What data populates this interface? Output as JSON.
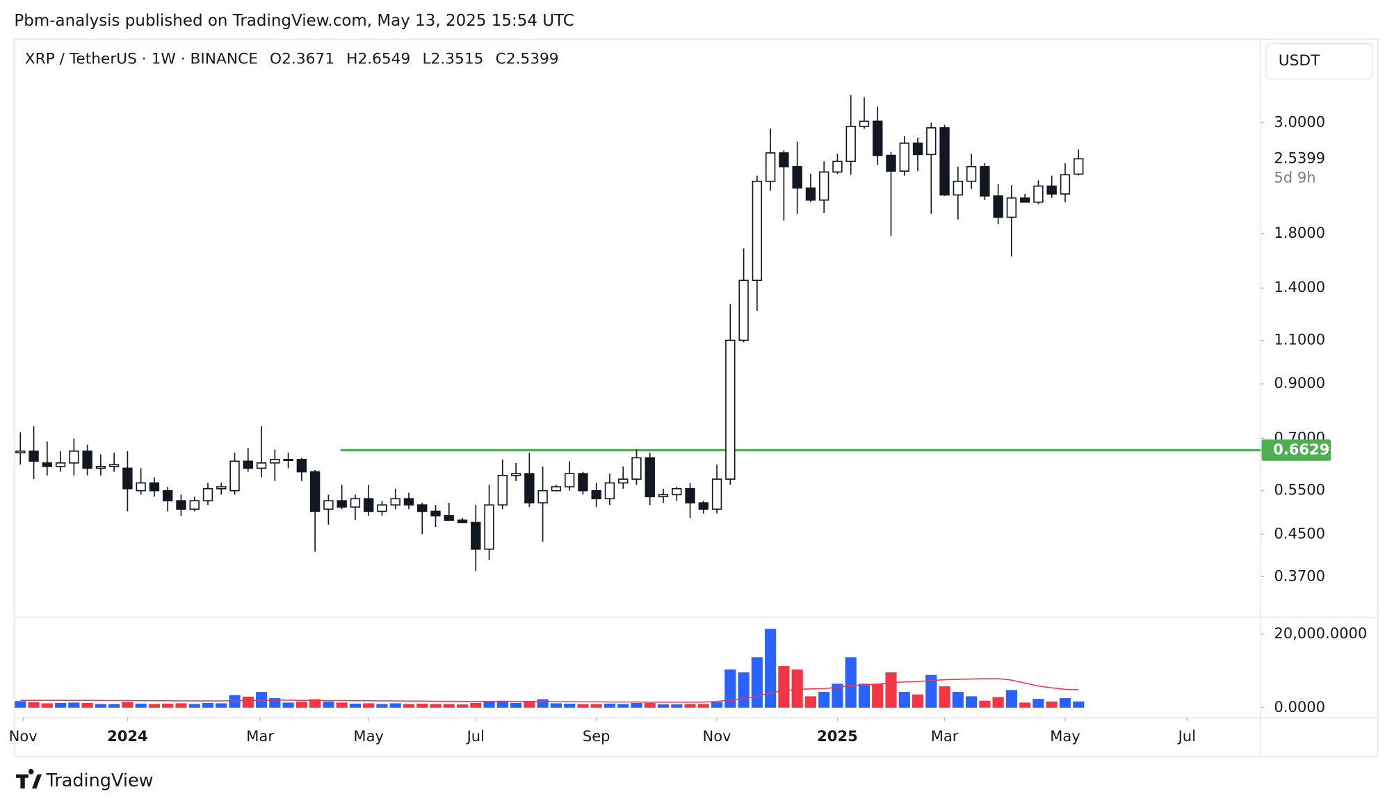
{
  "header": {
    "text": "Pbm-analysis published on TradingView.com, May 13, 2025 15:54 UTC"
  },
  "footer": {
    "brand": "TradingView"
  },
  "chart_data": {
    "type": "candlestick",
    "symbol": "XRP / TetherUS · 1W · BINANCE",
    "ohlc_prefixes": [
      "O",
      "H",
      "L",
      "C"
    ],
    "currency": "USDT",
    "countdown": "5d 9h",
    "log_scale": true,
    "up_color": "#ffffff",
    "down_color": "#131722",
    "outline_color": "#131722",
    "ylim": [
      0.307,
      4.41
    ],
    "yticks": [
      {
        "value": 3,
        "label": "3.0000"
      },
      {
        "value": 1.8,
        "label": "1.8000"
      },
      {
        "value": 1.4,
        "label": "1.4000"
      },
      {
        "value": 1.1,
        "label": "1.1000"
      },
      {
        "value": 0.9,
        "label": "0.9000"
      },
      {
        "value": 0.7,
        "label": "0.7000"
      },
      {
        "value": 0.55,
        "label": "0.5500"
      },
      {
        "value": 0.45,
        "label": "0.4500"
      },
      {
        "value": 0.37,
        "label": "0.3700"
      }
    ],
    "xlim": [
      -0.46,
      92.6
    ],
    "xticks": [
      {
        "value": 0.2,
        "label": "Nov"
      },
      {
        "value": 8,
        "label": "2024"
      },
      {
        "value": 17.9,
        "label": "Mar"
      },
      {
        "value": 26,
        "label": "May"
      },
      {
        "value": 34,
        "label": "Jul"
      },
      {
        "value": 43,
        "label": "Sep"
      },
      {
        "value": 52,
        "label": "Nov"
      },
      {
        "value": 61,
        "label": "2025"
      },
      {
        "value": 69,
        "label": "Mar"
      },
      {
        "value": 78,
        "label": "May"
      },
      {
        "value": 87.1,
        "label": "Jul"
      }
    ],
    "open": [
      0.655,
      0.66,
      0.625,
      0.615,
      0.625,
      0.66,
      0.61,
      0.615,
      0.61,
      0.55,
      0.57,
      0.55,
      0.525,
      0.505,
      0.525,
      0.555,
      0.55,
      0.63,
      0.61,
      0.625,
      0.635,
      0.635,
      0.6,
      0.505,
      0.525,
      0.51,
      0.53,
      0.5,
      0.515,
      0.53,
      0.515,
      0.5,
      0.49,
      0.48,
      0.475,
      0.42,
      0.515,
      0.59,
      0.595,
      0.52,
      0.55,
      0.56,
      0.595,
      0.55,
      0.53,
      0.57,
      0.58,
      0.64,
      0.535,
      0.54,
      0.555,
      0.52,
      0.505,
      0.58,
      1.1,
      1.45,
      2.29,
      2.61,
      2.45,
      2.22,
      2.1,
      2.39,
      2.51,
      2.95,
      3.02,
      2.58,
      2.4,
      2.73,
      2.59,
      2.93,
      2.15,
      2.29,
      2.45,
      2.14,
      1.94,
      2.12,
      2.08,
      2.24,
      2.16,
      2.3671
    ],
    "high": [
      0.72,
      0.74,
      0.69,
      0.66,
      0.7,
      0.68,
      0.65,
      0.655,
      0.66,
      0.61,
      0.585,
      0.56,
      0.54,
      0.535,
      0.57,
      0.57,
      0.655,
      0.67,
      0.74,
      0.665,
      0.655,
      0.64,
      0.605,
      0.54,
      0.565,
      0.54,
      0.565,
      0.525,
      0.555,
      0.545,
      0.52,
      0.515,
      0.52,
      0.485,
      0.515,
      0.565,
      0.635,
      0.625,
      0.655,
      0.615,
      0.565,
      0.63,
      0.6,
      0.57,
      0.595,
      0.615,
      0.665,
      0.655,
      0.555,
      0.56,
      0.57,
      0.525,
      0.62,
      1.3,
      1.68,
      2.35,
      2.92,
      2.64,
      2.75,
      2.37,
      2.51,
      2.6,
      3.41,
      3.37,
      3.23,
      2.62,
      2.82,
      2.8,
      3.0,
      2.97,
      2.45,
      2.6,
      2.49,
      2.26,
      2.25,
      2.16,
      2.3,
      2.35,
      2.49,
      2.6549
    ],
    "low": [
      0.62,
      0.58,
      0.59,
      0.6,
      0.59,
      0.59,
      0.59,
      0.6,
      0.5,
      0.54,
      0.535,
      0.5,
      0.49,
      0.5,
      0.515,
      0.54,
      0.54,
      0.6,
      0.585,
      0.575,
      0.61,
      0.575,
      0.415,
      0.47,
      0.505,
      0.48,
      0.49,
      0.49,
      0.505,
      0.505,
      0.45,
      0.465,
      0.48,
      0.475,
      0.38,
      0.4,
      0.505,
      0.575,
      0.51,
      0.435,
      0.55,
      0.55,
      0.54,
      0.51,
      0.515,
      0.555,
      0.565,
      0.515,
      0.52,
      0.525,
      0.485,
      0.495,
      0.495,
      0.565,
      1.09,
      1.26,
      2.19,
      1.91,
      1.97,
      2.08,
      1.98,
      2.37,
      2.36,
      2.92,
      2.47,
      1.78,
      2.35,
      2.4,
      1.97,
      2.14,
      1.92,
      2.21,
      2.1,
      1.88,
      1.62,
      2.08,
      2.06,
      2.12,
      2.08,
      2.3515
    ],
    "close": [
      0.66,
      0.63,
      0.615,
      0.625,
      0.66,
      0.61,
      0.615,
      0.62,
      0.555,
      0.57,
      0.55,
      0.525,
      0.505,
      0.525,
      0.555,
      0.56,
      0.63,
      0.61,
      0.625,
      0.635,
      0.635,
      0.6,
      0.5,
      0.525,
      0.51,
      0.53,
      0.5,
      0.515,
      0.53,
      0.515,
      0.5,
      0.49,
      0.48,
      0.475,
      0.42,
      0.515,
      0.59,
      0.595,
      0.52,
      0.55,
      0.56,
      0.595,
      0.55,
      0.53,
      0.57,
      0.58,
      0.64,
      0.535,
      0.54,
      0.555,
      0.52,
      0.505,
      0.58,
      1.1,
      1.45,
      2.29,
      2.61,
      2.45,
      2.22,
      2.1,
      2.39,
      2.51,
      2.95,
      3.02,
      2.58,
      2.4,
      2.73,
      2.59,
      2.93,
      2.15,
      2.29,
      2.45,
      2.14,
      1.94,
      2.12,
      2.08,
      2.24,
      2.16,
      2.36,
      2.5399
    ],
    "hline": {
      "value": 0.6629,
      "start": 23.9,
      "color": "#4caf50"
    },
    "volume": {
      "up_color": "#2962ff",
      "down_color": "#f23645",
      "ma_color": "#f23645",
      "ylim": [
        0,
        24600
      ],
      "yticks": [
        {
          "value": 20000,
          "label": "20,000.0000"
        },
        {
          "value": 0,
          "label": "0.0000"
        }
      ],
      "values": [
        1800,
        1500,
        1200,
        1300,
        1400,
        1300,
        1000,
        1000,
        1600,
        1100,
        1000,
        1100,
        1200,
        1000,
        1300,
        1200,
        3400,
        3000,
        4300,
        2600,
        1400,
        1700,
        2300,
        1700,
        1400,
        1100,
        1200,
        1000,
        1200,
        1000,
        1100,
        1000,
        1000,
        900,
        1300,
        1700,
        1900,
        1300,
        1600,
        2300,
        1200,
        1100,
        1000,
        1000,
        1100,
        1000,
        1300,
        1300,
        900,
        900,
        1000,
        1000,
        1500,
        10400,
        9600,
        13700,
        21400,
        11300,
        10400,
        3100,
        4300,
        6500,
        13700,
        6500,
        6500,
        9600,
        4300,
        3600,
        8900,
        5800,
        4300,
        3100,
        1900,
        2900,
        4800,
        1400,
        2400,
        1700,
        2600,
        1700
      ],
      "ma": [
        2000,
        2000,
        2000,
        2000,
        2000,
        2000,
        1950,
        1950,
        1950,
        1900,
        1900,
        1900,
        1850,
        1850,
        1850,
        1850,
        1900,
        1950,
        2000,
        2050,
        2050,
        2000,
        2000,
        1950,
        1950,
        1900,
        1900,
        1850,
        1850,
        1800,
        1800,
        1750,
        1750,
        1700,
        1700,
        1700,
        1700,
        1700,
        1700,
        1700,
        1650,
        1650,
        1600,
        1600,
        1550,
        1550,
        1550,
        1500,
        1500,
        1500,
        1500,
        1500,
        1700,
        2100,
        2500,
        3100,
        4100,
        4600,
        5000,
        5100,
        5200,
        5500,
        6000,
        6200,
        6400,
        6800,
        7000,
        7100,
        7400,
        7600,
        7700,
        7800,
        7900,
        7900,
        7500,
        6700,
        5900,
        5400,
        5000,
        4900
      ]
    }
  }
}
